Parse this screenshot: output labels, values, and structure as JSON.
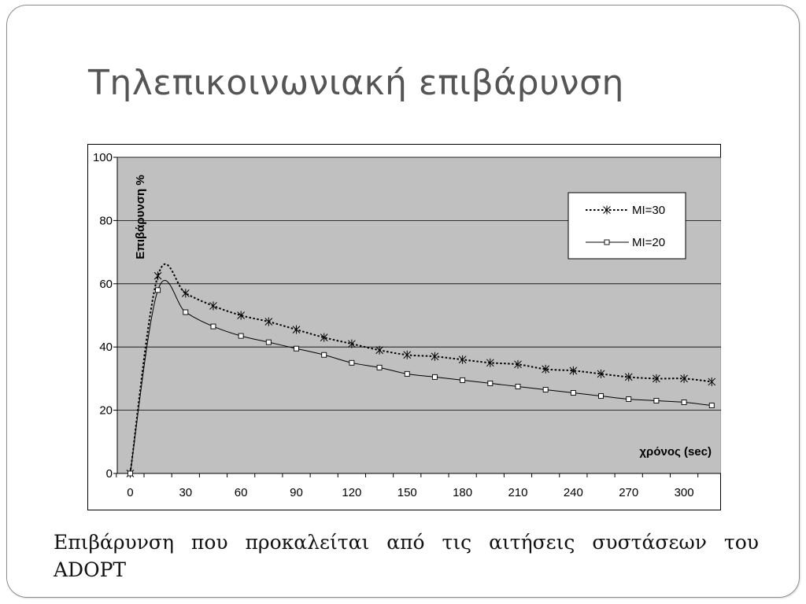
{
  "slide": {
    "title": "Τηλεπικοινωνιακή επιβάρυνση",
    "caption": "Επιβάρυνση που προκαλείται από τις αιτήσεις συστάσεων του ADOPT"
  },
  "chart_data": {
    "type": "line",
    "title": "",
    "xlabel": "χρόνος (sec)",
    "ylabel": "Επιβάρυνση %",
    "xlim": [
      -7,
      320
    ],
    "ylim": [
      0,
      100
    ],
    "x_ticks": [
      0,
      30,
      60,
      90,
      120,
      150,
      180,
      210,
      240,
      270,
      300
    ],
    "y_ticks": [
      0,
      20,
      40,
      60,
      80,
      100
    ],
    "grid": "horizontal",
    "legend_position": "top-right",
    "colors": {
      "plot_bg": "#c0c0c0",
      "series": "#000000",
      "grid": "#000000"
    },
    "series": [
      {
        "name": "MI=30",
        "style": "dotted",
        "marker": "asterisk",
        "x": [
          0,
          15,
          30,
          45,
          60,
          75,
          90,
          105,
          120,
          135,
          150,
          165,
          180,
          195,
          210,
          225,
          240,
          255,
          270,
          285,
          300,
          315
        ],
        "y": [
          0,
          62.5,
          57,
          53,
          50,
          48,
          45.5,
          43,
          41,
          39,
          37.5,
          37,
          36,
          35,
          34.5,
          33,
          32.5,
          31.5,
          30.5,
          30,
          30,
          29
        ]
      },
      {
        "name": "MI=20",
        "style": "solid",
        "marker": "square",
        "x": [
          0,
          15,
          30,
          45,
          60,
          75,
          90,
          105,
          120,
          135,
          150,
          165,
          180,
          195,
          210,
          225,
          240,
          255,
          270,
          285,
          300,
          315
        ],
        "y": [
          0,
          58,
          51,
          46.5,
          43.5,
          41.5,
          39.5,
          37.5,
          35,
          33.5,
          31.5,
          30.5,
          29.5,
          28.5,
          27.5,
          26.5,
          25.5,
          24.5,
          23.5,
          23,
          22.5,
          21.5
        ]
      }
    ]
  }
}
